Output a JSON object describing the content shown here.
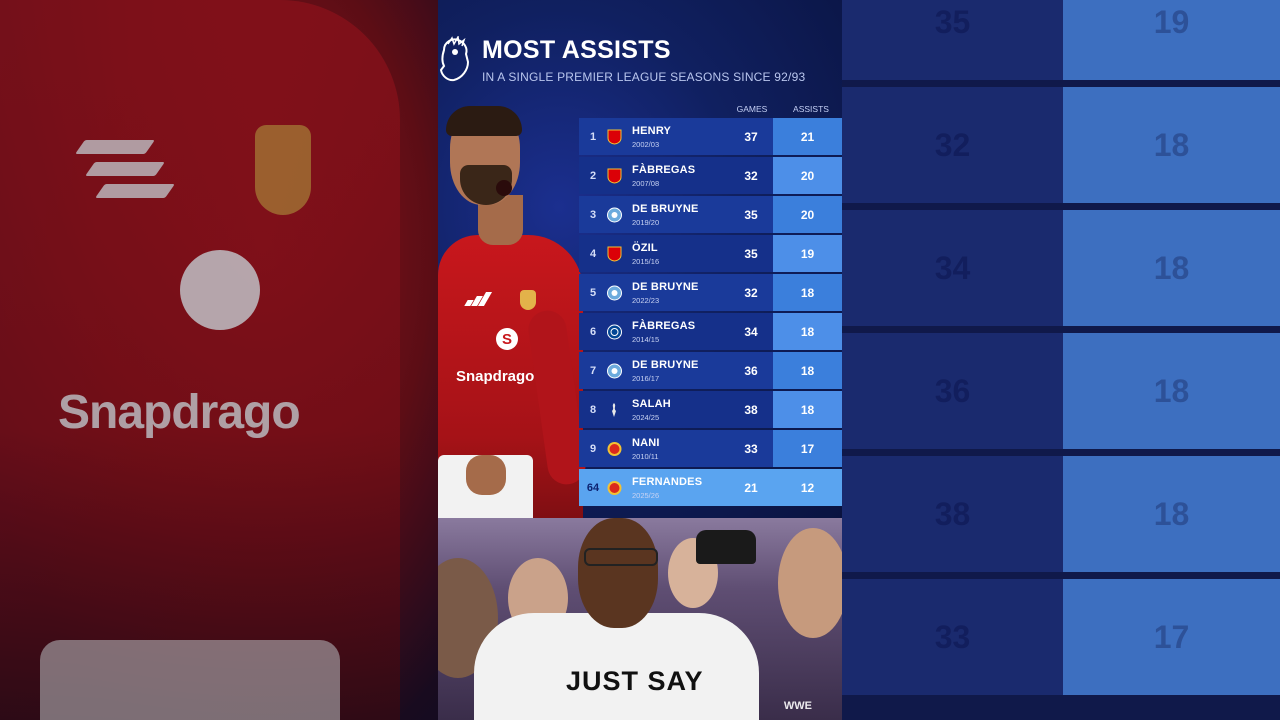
{
  "header": {
    "title": "MOST ASSISTS",
    "subtitle": "IN A SINGLE PREMIER LEAGUE SEASONS SINCE 92/93"
  },
  "columns": {
    "games": "GAMES",
    "assists": "ASSISTS"
  },
  "rows": [
    {
      "rank": "1",
      "name": "HENRY",
      "season": "2002/03",
      "games": "37",
      "assists": "21",
      "club": "arsenal"
    },
    {
      "rank": "2",
      "name": "FÀBREGAS",
      "season": "2007/08",
      "games": "32",
      "assists": "20",
      "club": "arsenal"
    },
    {
      "rank": "3",
      "name": "DE BRUYNE",
      "season": "2019/20",
      "games": "35",
      "assists": "20",
      "club": "man-city"
    },
    {
      "rank": "4",
      "name": "ÖZIL",
      "season": "2015/16",
      "games": "35",
      "assists": "19",
      "club": "arsenal"
    },
    {
      "rank": "5",
      "name": "DE BRUYNE",
      "season": "2022/23",
      "games": "32",
      "assists": "18",
      "club": "man-city"
    },
    {
      "rank": "6",
      "name": "FÀBREGAS",
      "season": "2014/15",
      "games": "34",
      "assists": "18",
      "club": "chelsea"
    },
    {
      "rank": "7",
      "name": "DE BRUYNE",
      "season": "2016/17",
      "games": "36",
      "assists": "18",
      "club": "man-city"
    },
    {
      "rank": "8",
      "name": "SALAH",
      "season": "2024/25",
      "games": "38",
      "assists": "18",
      "club": "liverpool"
    },
    {
      "rank": "9",
      "name": "NANI",
      "season": "2010/11",
      "games": "33",
      "assists": "17",
      "club": "man-utd"
    },
    {
      "rank": "64",
      "name": "FERNANDES",
      "season": "2025/26",
      "games": "21",
      "assists": "12",
      "club": "man-utd"
    }
  ],
  "club_colors": {
    "arsenal": "#db0007",
    "man-city": "#6cabdd",
    "chelsea": "#034694",
    "liverpool": "#c8102e",
    "man-utd": "#da291c"
  },
  "background_right": [
    {
      "games": "35",
      "assists": "19"
    },
    {
      "games": "32",
      "assists": "18"
    },
    {
      "games": "34",
      "assists": "18"
    },
    {
      "games": "36",
      "assists": "18"
    },
    {
      "games": "38",
      "assists": "18"
    },
    {
      "games": "33",
      "assists": "17"
    }
  ],
  "background_left": {
    "sponsor": "Snapdrago"
  },
  "player": {
    "sponsor": "Snapdrago"
  },
  "crowd": {
    "shirt_text": "JUST SAY",
    "watermark": "WWE"
  },
  "icons": {
    "league": "premier-league-lion-icon",
    "badges": [
      "arsenal-crest-icon",
      "man-city-crest-icon",
      "chelsea-crest-icon",
      "liverpool-crest-icon",
      "man-utd-crest-icon"
    ]
  }
}
